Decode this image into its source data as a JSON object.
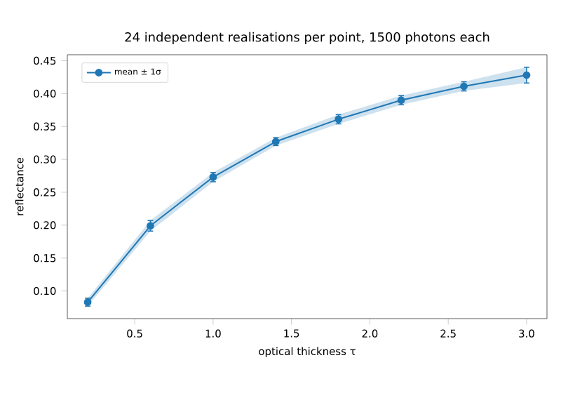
{
  "chart_data": {
    "type": "line",
    "title": "24 independent realisations per point, 1500 photons each",
    "xlabel": "optical thickness τ",
    "ylabel": "reflectance",
    "x": [
      0.2,
      0.6,
      1.0,
      1.4,
      1.8,
      2.2,
      2.6,
      3.0
    ],
    "series": [
      {
        "name": "mean ± 1σ",
        "color": "#1f77b4",
        "values": [
          0.083,
          0.199,
          0.273,
          0.327,
          0.361,
          0.39,
          0.411,
          0.428
        ],
        "errors": [
          0.006,
          0.008,
          0.007,
          0.006,
          0.007,
          0.007,
          0.007,
          0.012
        ],
        "lower": [
          0.077,
          0.191,
          0.266,
          0.321,
          0.354,
          0.383,
          0.404,
          0.416
        ],
        "upper": [
          0.089,
          0.207,
          0.28,
          0.333,
          0.368,
          0.397,
          0.418,
          0.44
        ]
      }
    ],
    "xlim": [
      0.07,
      3.13
    ],
    "ylim": [
      0.058,
      0.459
    ],
    "xticks": [
      {
        "value": 0.5,
        "label": "0.5"
      },
      {
        "value": 1.0,
        "label": "1.0"
      },
      {
        "value": 1.5,
        "label": "1.5"
      },
      {
        "value": 2.0,
        "label": "2.0"
      },
      {
        "value": 2.5,
        "label": "2.5"
      },
      {
        "value": 3.0,
        "label": "3.0"
      }
    ],
    "yticks": [
      {
        "value": 0.1,
        "label": "0.10"
      },
      {
        "value": 0.15,
        "label": "0.15"
      },
      {
        "value": 0.2,
        "label": "0.20"
      },
      {
        "value": 0.25,
        "label": "0.25"
      },
      {
        "value": 0.3,
        "label": "0.30"
      },
      {
        "value": 0.35,
        "label": "0.35"
      },
      {
        "value": 0.4,
        "label": "0.40"
      },
      {
        "value": 0.45,
        "label": "0.45"
      }
    ],
    "legend": "top left",
    "marker": "circle",
    "line_style": "solid",
    "grid": false
  }
}
